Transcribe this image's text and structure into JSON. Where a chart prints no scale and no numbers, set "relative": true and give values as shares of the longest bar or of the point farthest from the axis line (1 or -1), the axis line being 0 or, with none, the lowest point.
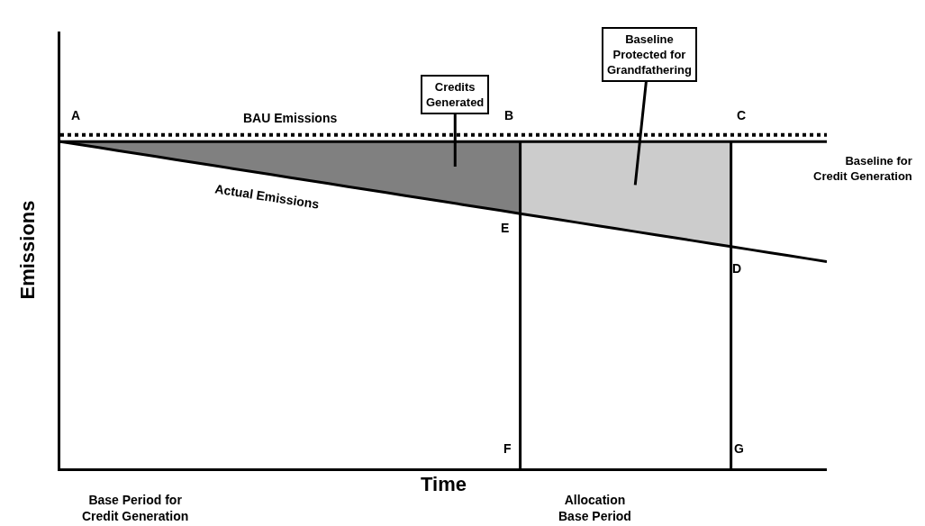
{
  "chart_data": {
    "type": "line",
    "relative": true,
    "xlabel": "Time",
    "ylabel": "Emissions",
    "legend": false,
    "categories": [
      null,
      null,
      null,
      null,
      null,
      null,
      null,
      null,
      null,
      null,
      null,
      null,
      null,
      null,
      null,
      null,
      null,
      null,
      null,
      null,
      null,
      null,
      null,
      null,
      null,
      null,
      null,
      null,
      null,
      null,
      null,
      null,
      null,
      null,
      null,
      null,
      null,
      null,
      null,
      null,
      null
    ],
    "series": [
      {
        "type": "area",
        "color": "#808080",
        "values": [
          0.98,
          0.98,
          0.98,
          0.98,
          0.98,
          0.98,
          0.98,
          0.98,
          0.98,
          0.98,
          0.98,
          0.98,
          0.98,
          0.98,
          0.98,
          0.98,
          0.98,
          0.98,
          0.98,
          0.98,
          0.98,
          0.98,
          0.98,
          0.98,
          0.98,
          null,
          null,
          null,
          null,
          null,
          null,
          null,
          null,
          null,
          null,
          null,
          null,
          null,
          null,
          null,
          null
        ]
      },
      {
        "type": "area",
        "color": "#cccccc",
        "values": [
          null,
          null,
          null,
          null,
          null,
          null,
          null,
          null,
          null,
          null,
          null,
          null,
          null,
          null,
          null,
          null,
          null,
          null,
          null,
          null,
          null,
          null,
          null,
          null,
          0.98,
          0.98,
          0.98,
          0.98,
          0.98,
          0.98,
          0.98,
          0.98,
          0.98,
          0.98,
          0.98,
          0.98,
          null,
          null,
          null,
          null,
          null
        ]
      },
      {
        "name": "BAU Emissions",
        "color": "#000000",
        "line_style": "dotted",
        "values": [
          1,
          1,
          1,
          1,
          1,
          1,
          1,
          1,
          1,
          1,
          1,
          1,
          1,
          1,
          1,
          1,
          1,
          1,
          1,
          1,
          1,
          1,
          1,
          1,
          1,
          1,
          1,
          1,
          1,
          1,
          1,
          1,
          1,
          1,
          1,
          1,
          1,
          1,
          1,
          1,
          1
        ]
      },
      {
        "name": "Baseline for Credit Generation",
        "color": "#000000",
        "line_style": "solid",
        "values": [
          0.98,
          0.98,
          0.98,
          0.98,
          0.98,
          0.98,
          0.98,
          0.98,
          0.98,
          0.98,
          0.98,
          0.98,
          0.98,
          0.98,
          0.98,
          0.98,
          0.98,
          0.98,
          0.98,
          0.98,
          0.98,
          0.98,
          0.98,
          0.98,
          0.98,
          0.98,
          0.98,
          0.98,
          0.98,
          0.98,
          0.98,
          0.98,
          0.98,
          0.98,
          0.98,
          0.98,
          0.98,
          0.98,
          0.98,
          0.98,
          0.98
        ]
      },
      {
        "name": "Actual Emissions",
        "color": "#000000",
        "line_style": "solid",
        "values": [
          0.98,
          0.971,
          0.962,
          0.953,
          0.944,
          0.935,
          0.926,
          0.917,
          0.908,
          0.899,
          0.89,
          0.881,
          0.872,
          0.863,
          0.854,
          0.845,
          0.836,
          0.827,
          0.818,
          0.809,
          0.8,
          0.791,
          0.782,
          0.773,
          0.764,
          0.755,
          0.746,
          0.737,
          0.728,
          0.719,
          0.71,
          0.701,
          0.692,
          0.683,
          0.674,
          0.665,
          0.656,
          0.647,
          0.638,
          0.629,
          0.62
        ]
      }
    ],
    "annotations": [
      "A",
      "B",
      "C",
      "D",
      "E",
      "F",
      "G",
      "Base Period for\nCredit Generation",
      "Allocation\nBase Period",
      "Credits\nGenerated",
      "Baseline\nProtected for\nGrandfathering"
    ]
  }
}
